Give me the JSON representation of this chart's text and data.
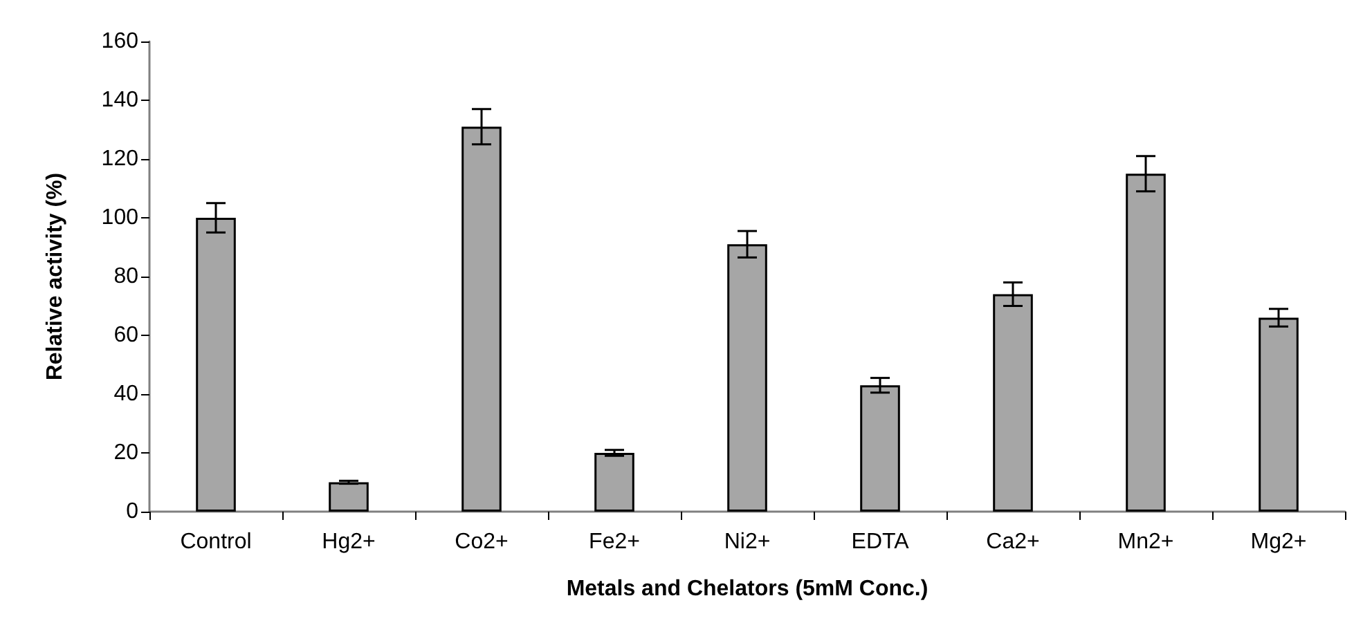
{
  "chart_data": {
    "type": "bar",
    "xlabel": "Metals and Chelators (5mM Conc.)",
    "ylabel": "Relative activity (%)",
    "categories": [
      "Control",
      "Hg2+",
      "Co2+",
      "Fe2+",
      "Ni2+",
      "EDTA",
      "Ca2+",
      "Mn2+",
      "Mg2+"
    ],
    "values": [
      100,
      10,
      131,
      20,
      91,
      43,
      74,
      115,
      66
    ],
    "errors": [
      5,
      0.5,
      6,
      1,
      4.5,
      2.5,
      4,
      6,
      3
    ],
    "color": "#a6a6a6",
    "ylim": [
      0,
      160
    ],
    "yticks": [
      0,
      20,
      40,
      60,
      80,
      100,
      120,
      140,
      160
    ],
    "grid": false
  }
}
